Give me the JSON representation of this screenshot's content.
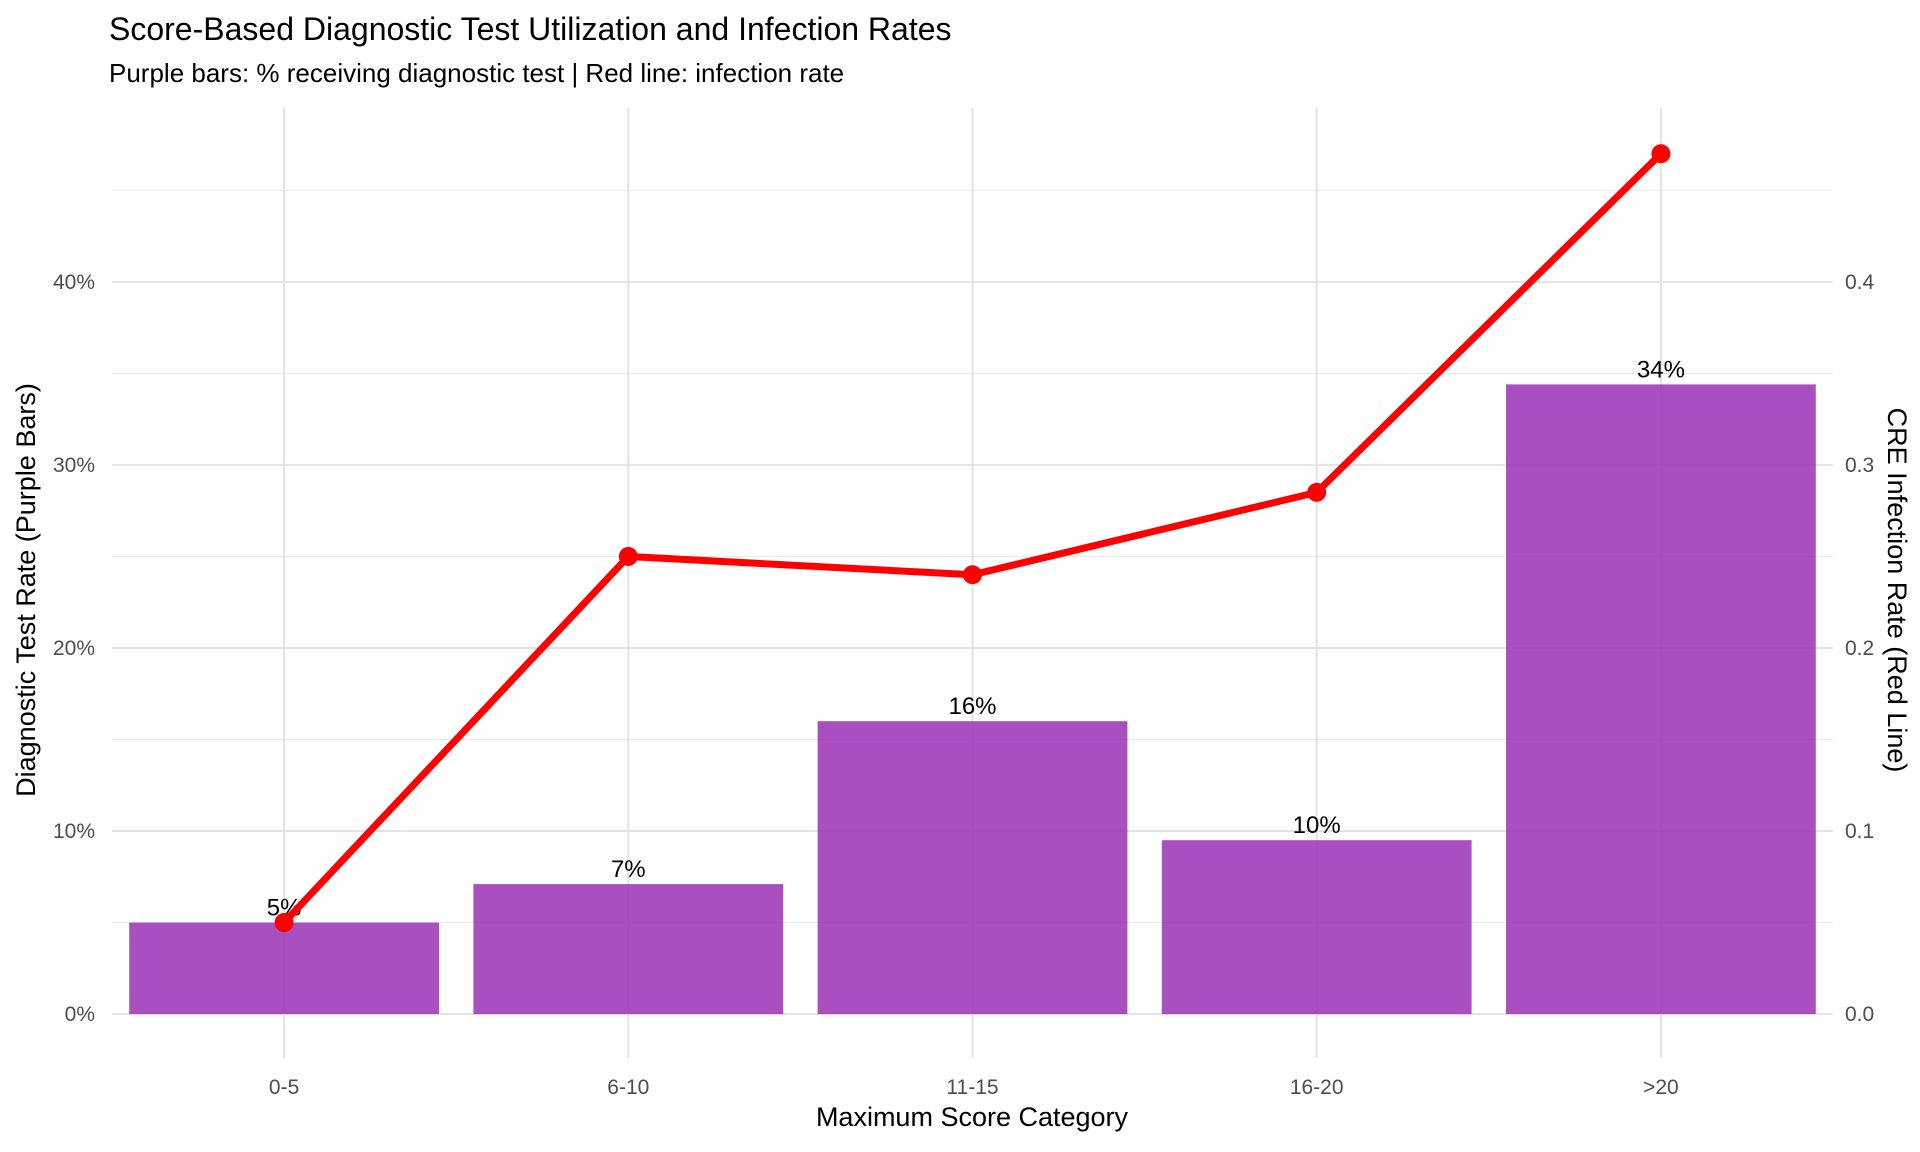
{
  "chart_data": {
    "type": "bar",
    "title": "Score-Based Diagnostic Test Utilization and Infection Rates",
    "subtitle": "Purple bars: % receiving diagnostic test | Red line: infection rate",
    "xlabel": "Maximum Score Category",
    "ylabel": "Diagnostic Test Rate (Purple Bars)",
    "y2label": "CRE Infection Rate (Red Line)",
    "categories": [
      "0-5",
      "6-10",
      "11-15",
      "16-20",
      ">20"
    ],
    "series": [
      {
        "type": "bar",
        "axis": "left",
        "values": [
          5.0,
          7.1,
          16.0,
          9.5,
          34.4
        ],
        "labels": [
          "5%",
          "7%",
          "16%",
          "10%",
          "34%"
        ],
        "color": "#9b30b5"
      },
      {
        "type": "line",
        "axis": "right",
        "values": [
          0.05,
          0.25,
          0.24,
          0.285,
          0.47
        ],
        "color": "#ff0000"
      }
    ],
    "ylim": [
      -2.4,
      49.5
    ],
    "y_ticks": [
      0,
      10,
      20,
      30,
      40
    ],
    "y_tick_labels": [
      "0%",
      "10%",
      "20%",
      "30%",
      "40%"
    ],
    "y2lim": [
      -0.024,
      0.495
    ],
    "y2_ticks": [
      0,
      0.1,
      0.2,
      0.3,
      0.4
    ],
    "y2_tick_labels": [
      "0.0",
      "0.1",
      "0.2",
      "0.3",
      "0.4"
    ],
    "grid": true,
    "legend": "none"
  }
}
